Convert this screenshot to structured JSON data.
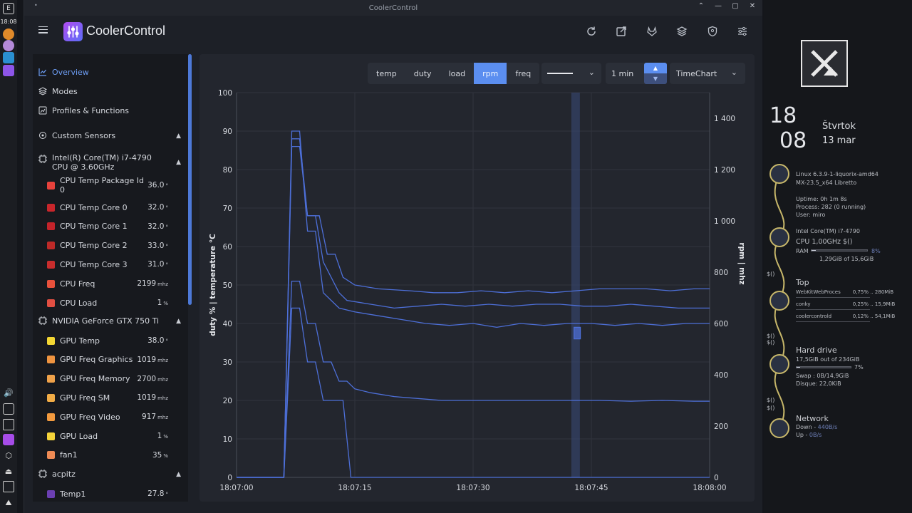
{
  "desktop": {
    "clock": "18:08"
  },
  "window": {
    "title": "CoolerControl",
    "controls": [
      "⌃",
      "—",
      "▢",
      "✕"
    ]
  },
  "app": {
    "brand": "CoolerControl",
    "header_icons": [
      "refresh-icon",
      "open-external-icon",
      "gitlab-icon",
      "layers-icon",
      "shield-icon",
      "sliders-icon"
    ]
  },
  "sidebar": {
    "nav": [
      {
        "label": "Overview",
        "icon": "chart-line-icon",
        "active": true
      },
      {
        "label": "Modes",
        "icon": "layers-icon",
        "active": false
      },
      {
        "label": "Profiles & Functions",
        "icon": "chart-box-icon",
        "active": false
      }
    ],
    "groups": [
      {
        "label": "Custom Sensors",
        "icon": "sensors-icon",
        "sensors": []
      },
      {
        "label": "Intel(R) Core(TM) i7-4790 CPU @ 3.60GHz",
        "icon": "chip-icon",
        "sensors": [
          {
            "name": "CPU Temp Package Id 0",
            "value": "36.0",
            "unit": "°",
            "color": "#e8423c"
          },
          {
            "name": "CPU Temp Core 0",
            "value": "32.0",
            "unit": "°",
            "color": "#c9262b"
          },
          {
            "name": "CPU Temp Core 1",
            "value": "32.0",
            "unit": "°",
            "color": "#c4232a"
          },
          {
            "name": "CPU Temp Core 2",
            "value": "33.0",
            "unit": "°",
            "color": "#be2a28"
          },
          {
            "name": "CPU Temp Core 3",
            "value": "31.0",
            "unit": "°",
            "color": "#c92d2d"
          },
          {
            "name": "CPU Freq",
            "value": "2199",
            "unit": "mhz",
            "color": "#e8513c"
          },
          {
            "name": "CPU Load",
            "value": "1",
            "unit": "%",
            "color": "#e24f42"
          }
        ]
      },
      {
        "label": "NVIDIA GeForce GTX 750 Ti",
        "icon": "chip-icon",
        "sensors": [
          {
            "name": "GPU Temp",
            "value": "38.0",
            "unit": "°",
            "color": "#f3d633"
          },
          {
            "name": "GPU Freq Graphics",
            "value": "1019",
            "unit": "mhz",
            "color": "#ef9440"
          },
          {
            "name": "GPU Freq Memory",
            "value": "2700",
            "unit": "mhz",
            "color": "#f0a24a"
          },
          {
            "name": "GPU Freq SM",
            "value": "1019",
            "unit": "mhz",
            "color": "#f2ac46"
          },
          {
            "name": "GPU Freq Video",
            "value": "917",
            "unit": "mhz",
            "color": "#f29a3e"
          },
          {
            "name": "GPU Load",
            "value": "1",
            "unit": "%",
            "color": "#f5d43a"
          },
          {
            "name": "fan1",
            "value": "35",
            "unit": "%",
            "color": "#ee8a54"
          }
        ]
      },
      {
        "label": "acpitz",
        "icon": "chip-icon",
        "sensors": [
          {
            "name": "Temp1",
            "value": "27.8",
            "unit": "°",
            "color": "#6b3fb2"
          }
        ]
      }
    ]
  },
  "toolbar": {
    "tabs": [
      {
        "label": "temp",
        "active": false
      },
      {
        "label": "duty",
        "active": false
      },
      {
        "label": "load",
        "active": false
      },
      {
        "label": "rpm",
        "active": true
      },
      {
        "label": "freq",
        "active": false
      }
    ],
    "time_range": "1 min",
    "chart_type": "TimeChart"
  },
  "chart_data": {
    "type": "line",
    "x_labels": [
      "18:07:00",
      "18:07:15",
      "18:07:30",
      "18:07:45",
      "18:08:00"
    ],
    "x_range": [
      0,
      60
    ],
    "y_left_ticks": [
      "0",
      "10",
      "20",
      "30",
      "40",
      "50",
      "60",
      "70",
      "80",
      "90",
      "100"
    ],
    "y_left_range": [
      0,
      100
    ],
    "y_right_ticks": [
      "0",
      "200",
      "400",
      "600",
      "800",
      "1 000",
      "1 200",
      "1 400"
    ],
    "y_right_range": [
      0,
      1500
    ],
    "ylabel_left": "duty %  |  temperature °C",
    "ylabel_right": "rpm  |  mhz",
    "line_color": "#4d6fd8",
    "cursor_x": 43,
    "grid": true,
    "series": [
      {
        "values": [
          [
            0,
            0
          ],
          [
            6.0,
            0
          ],
          [
            7.0,
            88
          ],
          [
            8.0,
            88
          ],
          [
            9.0,
            68
          ],
          [
            10.5,
            68
          ],
          [
            11.5,
            58
          ],
          [
            12.5,
            58
          ],
          [
            13.5,
            52
          ],
          [
            15,
            50
          ],
          [
            18,
            49
          ],
          [
            22,
            48.5
          ],
          [
            25,
            48
          ],
          [
            28,
            48
          ],
          [
            31,
            48.5
          ],
          [
            34,
            48
          ],
          [
            37,
            48.5
          ],
          [
            40,
            48
          ],
          [
            43,
            48.5
          ],
          [
            46,
            49
          ],
          [
            49,
            49
          ],
          [
            52,
            49
          ],
          [
            55,
            48.5
          ],
          [
            58,
            49
          ],
          [
            60,
            49
          ]
        ]
      },
      {
        "values": [
          [
            0,
            0
          ],
          [
            6.0,
            0
          ],
          [
            7.0,
            86
          ],
          [
            8.0,
            86
          ],
          [
            9.0,
            68
          ],
          [
            10.0,
            68
          ],
          [
            11.0,
            56
          ],
          [
            12.0,
            52
          ],
          [
            13.0,
            48
          ],
          [
            14,
            46
          ],
          [
            17,
            45
          ],
          [
            20,
            44
          ],
          [
            23,
            44.5
          ],
          [
            26,
            45
          ],
          [
            29,
            44.5
          ],
          [
            32,
            45
          ],
          [
            35,
            44.5
          ],
          [
            38,
            45
          ],
          [
            41,
            45
          ],
          [
            44,
            44.5
          ],
          [
            47,
            44.5
          ],
          [
            50,
            45
          ],
          [
            53,
            44.5
          ],
          [
            56,
            44
          ],
          [
            60,
            44
          ]
        ]
      },
      {
        "values": [
          [
            0,
            0
          ],
          [
            6.0,
            0
          ],
          [
            7.0,
            90
          ],
          [
            8.0,
            90
          ],
          [
            9.0,
            64
          ],
          [
            10.0,
            64
          ],
          [
            11.0,
            48
          ],
          [
            12.0,
            46
          ],
          [
            13,
            44
          ],
          [
            15,
            43
          ],
          [
            18,
            42
          ],
          [
            21,
            41
          ],
          [
            24,
            40
          ],
          [
            27,
            39.5
          ],
          [
            30,
            40
          ],
          [
            33,
            39
          ],
          [
            36,
            40
          ],
          [
            39,
            39.5
          ],
          [
            42,
            40
          ],
          [
            45,
            40
          ],
          [
            48,
            39.5
          ],
          [
            51,
            40
          ],
          [
            54,
            39.5
          ],
          [
            57,
            40
          ],
          [
            60,
            40
          ]
        ]
      },
      {
        "values": [
          [
            0,
            0
          ],
          [
            6.0,
            0
          ],
          [
            7.0,
            51
          ],
          [
            8.0,
            51
          ],
          [
            9.0,
            40
          ],
          [
            10.0,
            40
          ],
          [
            11.0,
            30
          ],
          [
            12.0,
            30
          ],
          [
            13.0,
            25
          ],
          [
            14,
            25
          ],
          [
            15,
            23
          ],
          [
            17,
            22
          ],
          [
            20,
            21
          ],
          [
            23,
            20.5
          ],
          [
            26,
            20
          ],
          [
            30,
            20
          ],
          [
            34,
            20
          ],
          [
            38,
            20
          ],
          [
            42,
            20
          ],
          [
            46,
            20
          ],
          [
            50,
            19.8
          ],
          [
            54,
            20
          ],
          [
            58,
            19.8
          ],
          [
            60,
            19.8
          ]
        ]
      },
      {
        "values": [
          [
            0,
            0
          ],
          [
            6.0,
            0
          ],
          [
            7.0,
            44
          ],
          [
            8.0,
            44
          ],
          [
            9.0,
            30
          ],
          [
            10.0,
            30
          ],
          [
            11.0,
            20
          ],
          [
            13.5,
            20
          ],
          [
            14.5,
            0
          ],
          [
            60,
            0
          ]
        ]
      },
      {
        "values": [
          [
            42.8,
            36
          ],
          [
            42.8,
            39
          ],
          [
            43.6,
            39
          ],
          [
            43.6,
            36
          ]
        ]
      }
    ]
  },
  "conky": {
    "hour": "18",
    "minute": "08",
    "weekday": "Štvrtok",
    "date": "13 mar",
    "kernel": "Linux 6.3.9-1-liquorix-amd64",
    "distro": "MX-23.5_x64 Libretto",
    "uptime": "Uptime:  0h 1m 8s",
    "process": "Process:    282 (0 running)",
    "user": "User:  miro",
    "cpu_model": "Intel Core(TM) i7-4790",
    "cpu_freq": "CPU 1,00GHz $()",
    "ram_label": "RAM",
    "ram_pct": "8%",
    "ram_frac": 0.08,
    "ram_used": "1,29GiB of 15,6GiB",
    "top_head": "Top",
    "top": [
      {
        "name": "WebKitWebProces",
        "cpu": "0,75%",
        "mem": "280MiB"
      },
      {
        "name": "conky",
        "cpu": "0,25%",
        "mem": "15,9MiB"
      },
      {
        "name": "coolercontrold",
        "cpu": "0,12%",
        "mem": "54,1MiB"
      }
    ],
    "disk_head": "Hard drive",
    "disk_used": "17,5GiB out of 234GiB",
    "disk_pct": "7%",
    "disk_frac": 0.07,
    "swap": "Swap :      0B/14,9GiB",
    "disque": "Disque: 22,0KiB",
    "net_head": "Network",
    "down_label": "Down - ",
    "down": "440B/s",
    "up_label": "Up - ",
    "up": "0B/s",
    "placeholder": "$()"
  }
}
